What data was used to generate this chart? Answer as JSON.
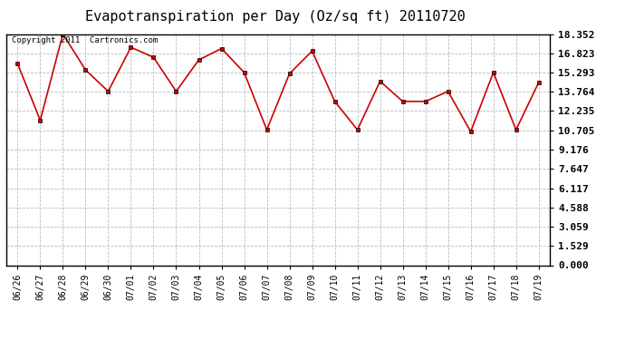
{
  "title": "Evapotranspiration per Day (Oz/sq ft) 20110720",
  "copyright": "Copyright 2011  Cartronics.com",
  "x_labels": [
    "06/26",
    "06/27",
    "06/28",
    "06/29",
    "06/30",
    "07/01",
    "07/02",
    "07/03",
    "07/04",
    "07/05",
    "07/06",
    "07/07",
    "07/08",
    "07/09",
    "07/10",
    "07/11",
    "07/12",
    "07/13",
    "07/14",
    "07/15",
    "07/16",
    "07/17",
    "07/18",
    "07/19"
  ],
  "y_values": [
    16.0,
    11.5,
    18.35,
    15.5,
    13.8,
    17.3,
    16.5,
    13.8,
    16.3,
    17.2,
    15.3,
    10.75,
    15.2,
    17.0,
    13.0,
    10.75,
    14.6,
    13.0,
    13.0,
    13.8,
    10.6,
    15.3,
    10.75,
    14.5
  ],
  "y_ticks": [
    0.0,
    1.529,
    3.059,
    4.588,
    6.117,
    7.647,
    9.176,
    10.705,
    12.235,
    13.764,
    15.293,
    16.823,
    18.352
  ],
  "y_min": 0.0,
  "y_max": 18.352,
  "line_color": "#cc0000",
  "marker_color": "#cc0000",
  "marker": "s",
  "marker_size": 3,
  "background_color": "#ffffff",
  "plot_bg_color": "#ffffff",
  "grid_color": "#aaaaaa",
  "title_fontsize": 11,
  "copyright_fontsize": 6.5,
  "tick_fontsize": 7,
  "y_tick_fontsize": 8
}
